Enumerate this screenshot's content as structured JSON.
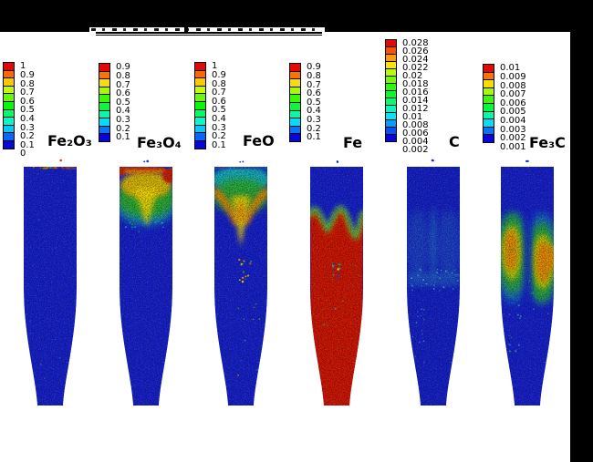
{
  "chart_data": {
    "type": "heatmap",
    "description": "Six vertical particle-bed panels (cylindrical column with conical bottom) colored by species mass fraction; rainbow color scale, red = high value, blue = low value; each panel has its own discrete colorbar legend above it.",
    "color_scale": "rainbow: red = high, blue = low",
    "high_color": "#e02800",
    "low_color": "#1621d8",
    "panels": [
      {
        "species_label": "Fe₂O₃",
        "ticks": [
          "1",
          "0.9",
          "0.8",
          "0.7",
          "0.6",
          "0.5",
          "0.4",
          "0.3",
          "0.2",
          "0.1",
          "0"
        ],
        "range": [
          0,
          1
        ],
        "distribution": "Bed almost entirely at minimum (blue, ~0); thin ragged line of high values (red/orange, ~0.8-1) only at the very top surface; one stray red particle above the bed."
      },
      {
        "species_label": "Fe₃O₄",
        "ticks": [
          "0.9",
          "0.8",
          "0.7",
          "0.6",
          "0.5",
          "0.4",
          "0.3",
          "0.2",
          "0.1"
        ],
        "range": [
          0.1,
          0.9
        ],
        "distribution": "Red (~0.9) thin layer at the top surface with larger red patch at the top-right corner; orange-yellow plume (~0.5-0.8) filling the upper fifth with a yellow tongue descending at the center; green/cyan fringe below; remainder blue (~0.1)."
      },
      {
        "species_label": "FeO",
        "ticks": [
          "1",
          "0.9",
          "0.8",
          "0.7",
          "0.6",
          "0.5",
          "0.4",
          "0.3",
          "0.2",
          "0.1"
        ],
        "range": [
          0.1,
          1
        ],
        "distribution": "Cyan-green layer (~0.3-0.6) at the top; yellow-orange V-shaped band (~0.7-0.9) beneath it with a yellow tongue reaching down the centre; scattered orange/yellow specks in the mid-bed; bulk blue (~0.1)."
      },
      {
        "species_label": "Fe",
        "ticks": [
          "0.9",
          "0.8",
          "0.7",
          "0.6",
          "0.5",
          "0.4",
          "0.3",
          "0.2",
          "0.1"
        ],
        "range": [
          0.1,
          0.9
        ],
        "distribution": "Top quarter blue (~0.1); wavy green-yellow transition front; everything below, including the whole conical section, red (~0.9) with a small multicoloured speck cluster mid-bed."
      },
      {
        "species_label": "C",
        "ticks": [
          "0.028",
          "0.026",
          "0.024",
          "0.022",
          "0.02",
          "0.018",
          "0.016",
          "0.014",
          "0.012",
          "0.01",
          "0.008",
          "0.006",
          "0.004",
          "0.002"
        ],
        "range": [
          0.002,
          0.028
        ],
        "distribution": "Nearly uniform blue (~0.002-0.006); faint cyan vertical streaks in the mid-bed and a speckled cyan horizontal band (~0.008-0.012) just above the conical section."
      },
      {
        "species_label": "Fe₃C",
        "ticks": [
          "0.01",
          "0.009",
          "0.008",
          "0.007",
          "0.006",
          "0.005",
          "0.004",
          "0.003",
          "0.002",
          "0.001"
        ],
        "range": [
          0.001,
          0.01
        ],
        "distribution": "Blue background (~0.001-0.002) with two symmetric mid-bed lobes of elevated values: green/cyan fringes with yellow-orange cores (~0.006-0.009), separated by a blue central channel; cyan speckles trailing into the cone."
      }
    ]
  }
}
